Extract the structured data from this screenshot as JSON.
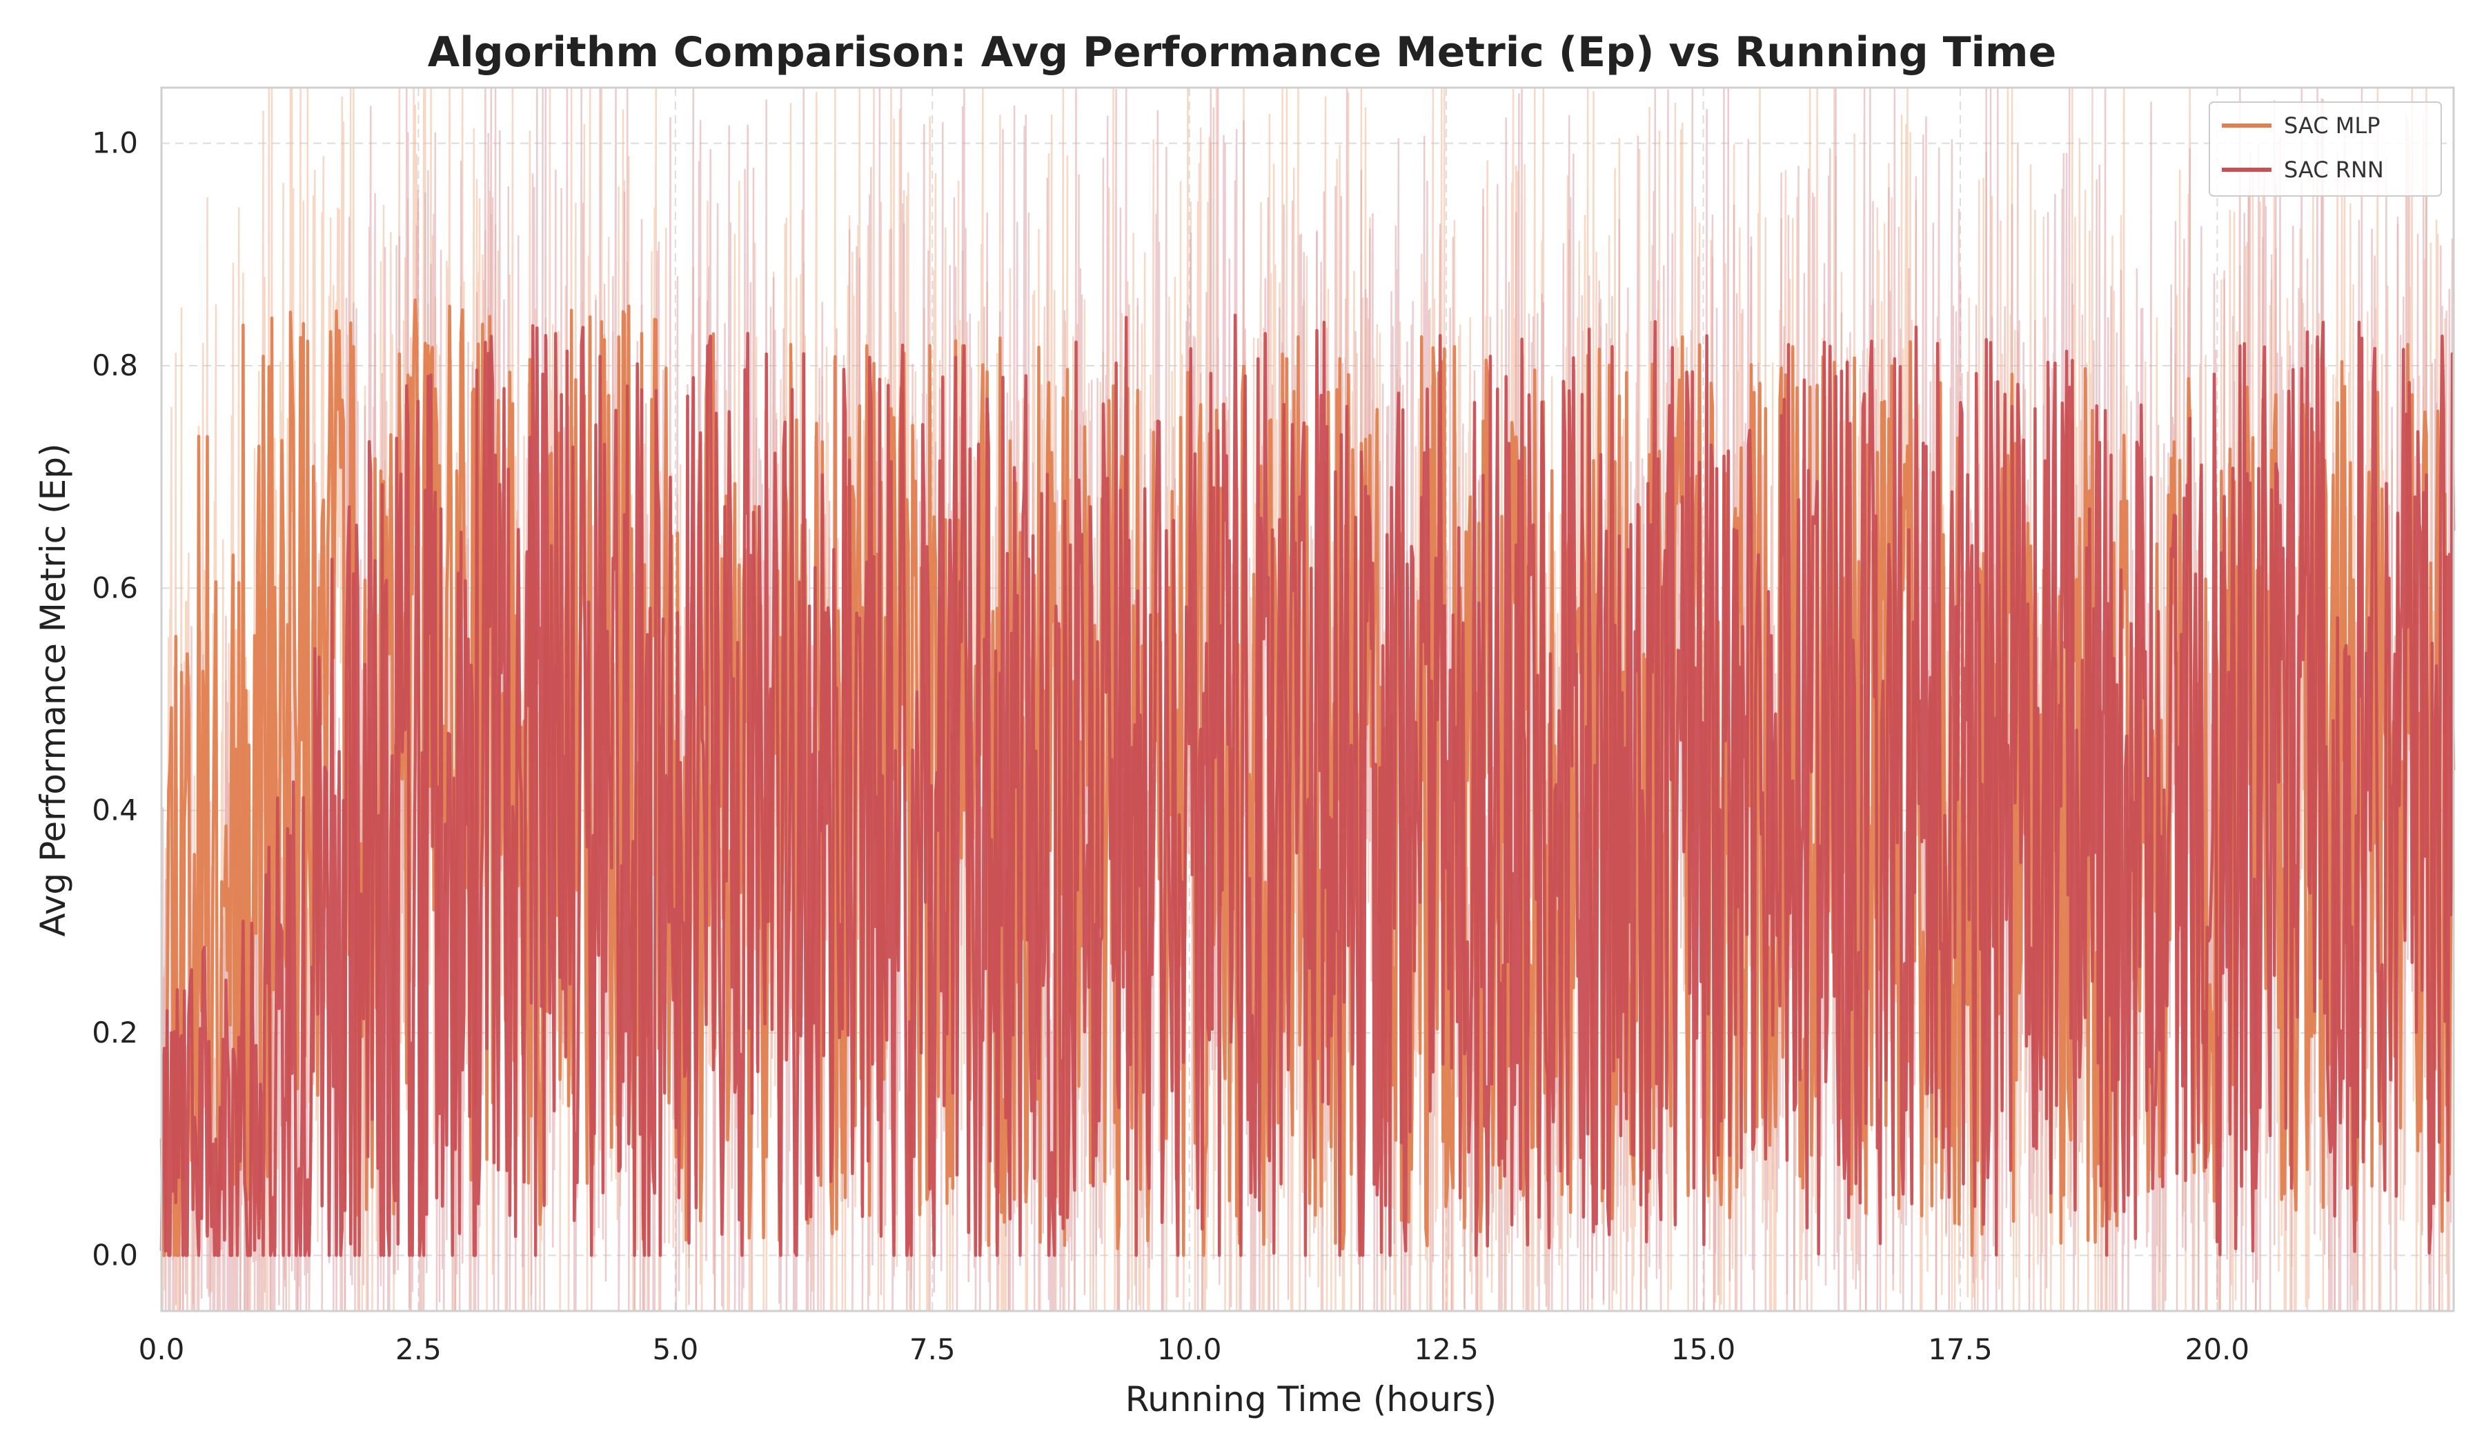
{
  "chart_data": {
    "type": "line",
    "title": "Algorithm Comparison: Avg Performance Metric (Ep) vs Running Time",
    "xlabel": "Running Time (hours)",
    "ylabel": "Avg Performance Metric (Ep)",
    "xlim": [
      0,
      22.3
    ],
    "ylim": [
      -0.05,
      1.05
    ],
    "xticks": [
      0.0,
      2.5,
      5.0,
      7.5,
      10.0,
      12.5,
      15.0,
      17.5,
      20.0
    ],
    "xtick_labels": [
      "0.0",
      "2.5",
      "5.0",
      "7.5",
      "10.0",
      "12.5",
      "15.0",
      "17.5",
      "20.0"
    ],
    "yticks": [
      0.0,
      0.2,
      0.4,
      0.6,
      0.8,
      1.0
    ],
    "ytick_labels": [
      "0.0",
      "0.2",
      "0.4",
      "0.6",
      "0.8",
      "1.0"
    ],
    "grid": true,
    "legend_position": "top-right",
    "series": [
      {
        "name": "SAC MLP",
        "color": "#e08050",
        "band_color": "#f1b899",
        "x": [
          0,
          0.5,
          1,
          1.5,
          2,
          2.5,
          3,
          3.5,
          4,
          4.5,
          5,
          5.5,
          6,
          6.5,
          7,
          7.5,
          8,
          8.5,
          9,
          9.5,
          10,
          10.5,
          11,
          11.5,
          12,
          12.5,
          13,
          13.5,
          14,
          14.5,
          15,
          15.5,
          16,
          16.5,
          17,
          17.5,
          18,
          18.5,
          19,
          19.5,
          20,
          20.5,
          21,
          21.5,
          22
        ],
        "mean": [
          0.3,
          0.38,
          0.45,
          0.5,
          0.48,
          0.45,
          0.46,
          0.47,
          0.45,
          0.44,
          0.43,
          0.42,
          0.42,
          0.42,
          0.41,
          0.41,
          0.4,
          0.4,
          0.41,
          0.42,
          0.4,
          0.41,
          0.42,
          0.41,
          0.41,
          0.42,
          0.42,
          0.41,
          0.42,
          0.43,
          0.43,
          0.42,
          0.43,
          0.42,
          0.42,
          0.41,
          0.4,
          0.41,
          0.42,
          0.43,
          0.43,
          0.42,
          0.42,
          0.43,
          0.42
        ],
        "spread": [
          0.3,
          0.32,
          0.35,
          0.35,
          0.36,
          0.36,
          0.36,
          0.35,
          0.35,
          0.34,
          0.34,
          0.34,
          0.33,
          0.33,
          0.33,
          0.33,
          0.34,
          0.34,
          0.33,
          0.33,
          0.34,
          0.34,
          0.33,
          0.33,
          0.33,
          0.33,
          0.33,
          0.33,
          0.32,
          0.32,
          0.32,
          0.32,
          0.32,
          0.32,
          0.33,
          0.33,
          0.33,
          0.33,
          0.32,
          0.32,
          0.31,
          0.32,
          0.32,
          0.32,
          0.32
        ]
      },
      {
        "name": "SAC RNN",
        "color": "#c94f54",
        "band_color": "#dfa3a8",
        "x": [
          0,
          0.5,
          1,
          1.5,
          2,
          2.5,
          3,
          3.5,
          4,
          4.5,
          5,
          5.5,
          6,
          6.5,
          7,
          7.5,
          8,
          8.5,
          9,
          9.5,
          10,
          10.5,
          11,
          11.5,
          12,
          12.5,
          13,
          13.5,
          14,
          14.5,
          15,
          15.5,
          16,
          16.5,
          17,
          17.5,
          18,
          18.5,
          19,
          19.5,
          20,
          20.5,
          21,
          21.5,
          22
        ],
        "mean": [
          0.08,
          0.1,
          0.12,
          0.2,
          0.32,
          0.4,
          0.42,
          0.43,
          0.42,
          0.41,
          0.41,
          0.4,
          0.4,
          0.4,
          0.39,
          0.39,
          0.39,
          0.4,
          0.4,
          0.41,
          0.4,
          0.41,
          0.41,
          0.4,
          0.41,
          0.41,
          0.41,
          0.41,
          0.42,
          0.42,
          0.42,
          0.42,
          0.42,
          0.42,
          0.42,
          0.41,
          0.41,
          0.41,
          0.42,
          0.42,
          0.42,
          0.42,
          0.42,
          0.42,
          0.42
        ],
        "spread": [
          0.12,
          0.16,
          0.2,
          0.3,
          0.36,
          0.37,
          0.37,
          0.37,
          0.36,
          0.36,
          0.36,
          0.36,
          0.35,
          0.35,
          0.35,
          0.35,
          0.35,
          0.35,
          0.35,
          0.35,
          0.35,
          0.35,
          0.35,
          0.35,
          0.34,
          0.34,
          0.34,
          0.34,
          0.34,
          0.34,
          0.34,
          0.34,
          0.34,
          0.34,
          0.34,
          0.34,
          0.34,
          0.34,
          0.34,
          0.34,
          0.34,
          0.34,
          0.34,
          0.34,
          0.34
        ]
      }
    ]
  }
}
